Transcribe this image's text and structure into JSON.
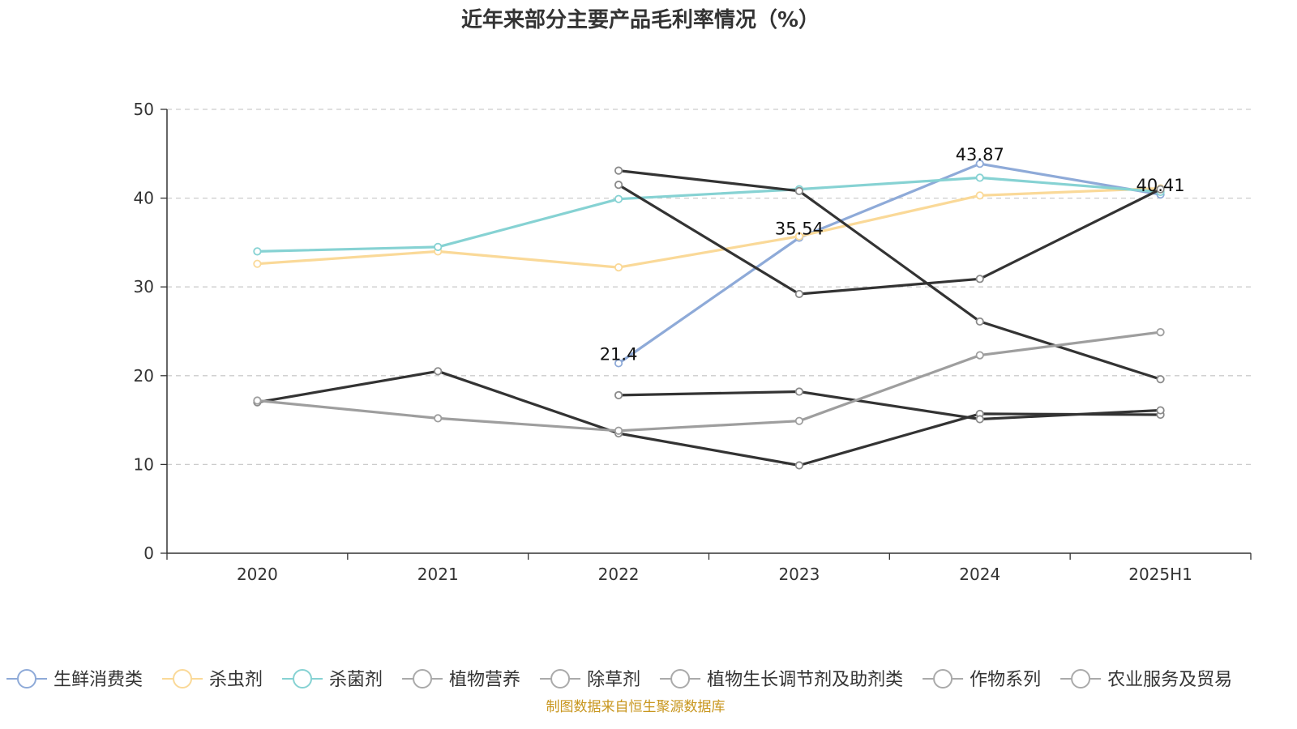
{
  "chart_data": {
    "type": "line",
    "title": "近年来部分主要产品毛利率情况（%）",
    "x": [
      "2020",
      "2021",
      "2022",
      "2023",
      "2024",
      "2025H1"
    ],
    "ylim": [
      0,
      50
    ],
    "yticks": [
      0,
      10,
      20,
      30,
      40,
      50
    ],
    "grid": true,
    "legend_position": "bottom",
    "series": [
      {
        "name": "生鲜消费类",
        "color": "#8eaad8",
        "values": [
          null,
          null,
          21.4,
          35.54,
          43.87,
          40.41
        ],
        "labels": [
          null,
          null,
          "21.4",
          "35.54",
          "43.87",
          "40.41"
        ]
      },
      {
        "name": "杀虫剂",
        "color": "#fad998",
        "values": [
          32.6,
          34.0,
          32.2,
          35.7,
          40.3,
          41.1
        ]
      },
      {
        "name": "杀菌剂",
        "color": "#86d2d3",
        "values": [
          34.0,
          34.5,
          39.9,
          41.0,
          42.3,
          40.7
        ]
      },
      {
        "name": "植物营养",
        "color": "#333333",
        "values": [
          null,
          null,
          41.5,
          29.2,
          30.9,
          41.0
        ]
      },
      {
        "name": "除草剂",
        "color": "#333333",
        "values": [
          null,
          null,
          43.1,
          40.8,
          26.1,
          19.6
        ]
      },
      {
        "name": "植物生长调节剂及助剂类",
        "color": "#333333",
        "values": [
          17.0,
          20.5,
          13.5,
          9.9,
          15.7,
          15.6
        ]
      },
      {
        "name": "作物系列",
        "color": "#333333",
        "values": [
          null,
          null,
          17.8,
          18.2,
          15.1,
          16.1
        ]
      },
      {
        "name": "农业服务及贸易",
        "color": "#9e9e9e",
        "values": [
          17.2,
          15.2,
          13.8,
          14.9,
          22.3,
          24.9
        ]
      }
    ],
    "legend_icon_color": "#aaaaaa"
  },
  "source_note": "制图数据来自恒生聚源数据库"
}
